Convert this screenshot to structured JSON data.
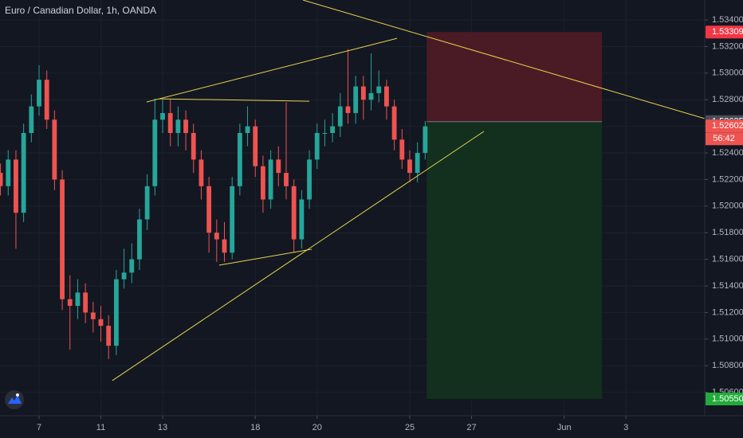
{
  "chart_data": {
    "type": "candlestick",
    "title": "Euro / Canadian Dollar, 1h, OANDA",
    "xlim": [
      -1.265,
      21.55
    ],
    "ylim": [
      1.50424,
      1.5355
    ],
    "grid": true,
    "up_color": "#26a69a",
    "down_color": "#ef5350",
    "xticks": [
      {
        "value": 0,
        "label": "7"
      },
      {
        "value": 2,
        "label": "11"
      },
      {
        "value": 4,
        "label": "13"
      },
      {
        "value": 7,
        "label": "18"
      },
      {
        "value": 9,
        "label": "20"
      },
      {
        "value": 12,
        "label": "25"
      },
      {
        "value": 14,
        "label": "27"
      },
      {
        "value": 17,
        "label": "Jun"
      },
      {
        "value": 19,
        "label": "3"
      }
    ],
    "yticks": [
      {
        "value": 1.534,
        "label": "1.53400"
      },
      {
        "value": 1.532,
        "label": "1.53200"
      },
      {
        "value": 1.53,
        "label": "1.53000"
      },
      {
        "value": 1.528,
        "label": "1.52800"
      },
      {
        "value": 1.526,
        "label": "1.52600"
      },
      {
        "value": 1.524,
        "label": "1.52400"
      },
      {
        "value": 1.522,
        "label": "1.52200"
      },
      {
        "value": 1.52,
        "label": "1.52000"
      },
      {
        "value": 1.518,
        "label": "1.51800"
      },
      {
        "value": 1.516,
        "label": "1.51600"
      },
      {
        "value": 1.514,
        "label": "1.51400"
      },
      {
        "value": 1.512,
        "label": "1.51200"
      },
      {
        "value": 1.51,
        "label": "1.51000"
      },
      {
        "value": 1.508,
        "label": "1.50800"
      },
      {
        "value": 1.506,
        "label": "1.50600"
      }
    ],
    "x": [
      -1.25,
      -1,
      -0.75,
      -0.5,
      -0.25,
      0,
      0.25,
      0.5,
      0.75,
      1,
      1.25,
      1.5,
      1.75,
      2,
      2.25,
      2.5,
      2.75,
      3,
      3.25,
      3.5,
      3.75,
      4,
      4.25,
      4.5,
      4.75,
      5,
      5.25,
      5.5,
      5.75,
      6,
      6.25,
      6.5,
      6.75,
      7,
      7.25,
      7.5,
      7.75,
      8,
      8.25,
      8.5,
      8.75,
      9,
      9.25,
      9.5,
      9.75,
      10,
      10.25,
      10.5,
      10.75,
      11,
      11.25,
      11.5,
      11.75,
      12,
      12.25,
      12.5
    ],
    "open": [
      1.5225,
      1.5215,
      1.5235,
      1.5195,
      1.5255,
      1.5275,
      1.5295,
      1.5265,
      1.522,
      1.513,
      1.5125,
      1.5135,
      1.512,
      1.5115,
      1.511,
      1.5095,
      1.5145,
      1.515,
      1.516,
      1.519,
      1.5215,
      1.5265,
      1.527,
      1.5255,
      1.5265,
      1.5255,
      1.5235,
      1.5215,
      1.518,
      1.5175,
      1.5165,
      1.5215,
      1.5255,
      1.526,
      1.523,
      1.5205,
      1.5235,
      1.5225,
      1.5215,
      1.5175,
      1.5205,
      1.5235,
      1.5255,
      1.5255,
      1.526,
      1.5275,
      1.527,
      1.529,
      1.528,
      1.5285,
      1.529,
      1.5275,
      1.525,
      1.5235,
      1.5225,
      1.524
    ],
    "high": [
      1.5232,
      1.5242,
      1.5242,
      1.5262,
      1.5284,
      1.5306,
      1.5302,
      1.5272,
      1.5227,
      1.5148,
      1.5145,
      1.5142,
      1.5128,
      1.5125,
      1.5118,
      1.5152,
      1.5168,
      1.5172,
      1.5198,
      1.5224,
      1.5281,
      1.528,
      1.528,
      1.5275,
      1.5272,
      1.5262,
      1.5242,
      1.5222,
      1.519,
      1.5188,
      1.5222,
      1.5262,
      1.5275,
      1.5265,
      1.5238,
      1.5242,
      1.5245,
      1.5278,
      1.522,
      1.5212,
      1.5242,
      1.5262,
      1.5265,
      1.527,
      1.5285,
      1.5318,
      1.5298,
      1.5298,
      1.5315,
      1.5302,
      1.5295,
      1.528,
      1.5258,
      1.5242,
      1.5248,
      1.5264
    ],
    "low": [
      1.5208,
      1.5208,
      1.5168,
      1.5188,
      1.5248,
      1.5268,
      1.5258,
      1.5212,
      1.5122,
      1.5092,
      1.5115,
      1.5112,
      1.5105,
      1.5098,
      1.5085,
      1.5088,
      1.5138,
      1.5142,
      1.5152,
      1.5182,
      1.5208,
      1.5255,
      1.5245,
      1.5245,
      1.5242,
      1.5225,
      1.5205,
      1.5165,
      1.5158,
      1.5158,
      1.516,
      1.5208,
      1.5245,
      1.5222,
      1.5195,
      1.5198,
      1.5215,
      1.5205,
      1.5165,
      1.5168,
      1.5198,
      1.5228,
      1.5245,
      1.5248,
      1.5252,
      1.5262,
      1.5262,
      1.5265,
      1.5272,
      1.5278,
      1.5265,
      1.5242,
      1.5228,
      1.5218,
      1.5218,
      1.5235
    ],
    "close": [
      1.5215,
      1.5235,
      1.5195,
      1.5255,
      1.5275,
      1.5295,
      1.5265,
      1.522,
      1.513,
      1.5125,
      1.5135,
      1.512,
      1.5115,
      1.511,
      1.5095,
      1.5145,
      1.515,
      1.516,
      1.519,
      1.5215,
      1.5265,
      1.527,
      1.5255,
      1.5265,
      1.5255,
      1.5235,
      1.5215,
      1.518,
      1.5175,
      1.5165,
      1.5215,
      1.5255,
      1.526,
      1.523,
      1.5205,
      1.5235,
      1.5225,
      1.5215,
      1.5175,
      1.5205,
      1.5235,
      1.5255,
      1.5255,
      1.526,
      1.5275,
      1.527,
      1.529,
      1.528,
      1.5285,
      1.529,
      1.5275,
      1.525,
      1.5235,
      1.5225,
      1.524,
      1.526
    ],
    "trendline_color": "#e8d44d",
    "trendlines": [
      {
        "x": [
          8.54,
          21.55
        ],
        "y": [
          1.5355,
          1.52658
        ]
      },
      {
        "x": [
          3.48,
          11.59
        ],
        "y": [
          1.52783,
          1.53262
        ]
      },
      {
        "x": [
          3.9,
          8.75
        ],
        "y": [
          1.52807,
          1.52789
        ]
      },
      {
        "x": [
          5.83,
          8.83
        ],
        "y": [
          1.51556,
          1.51676
        ]
      },
      {
        "x": [
          2.37,
          14.4
        ],
        "y": [
          1.50688,
          1.52562
        ]
      }
    ],
    "position": {
      "x": [
        12.55,
        18.22
      ],
      "entry": 1.52635,
      "stop": 1.53309,
      "target": 1.5055,
      "stop_color": "#4a1b24",
      "target_color": "#13301f"
    },
    "price_tags": [
      {
        "value": 1.53309,
        "label": "1.53309",
        "color": "#f23645"
      },
      {
        "value": 1.52635,
        "label": "1.52635",
        "color": "#4a4e5a"
      },
      {
        "value": 1.52602,
        "label": "1.52602",
        "color": "#ef5350"
      },
      {
        "value": 1.5055,
        "label": "1.50550",
        "color": "#22ab3b"
      }
    ],
    "countdown": "56:42"
  }
}
